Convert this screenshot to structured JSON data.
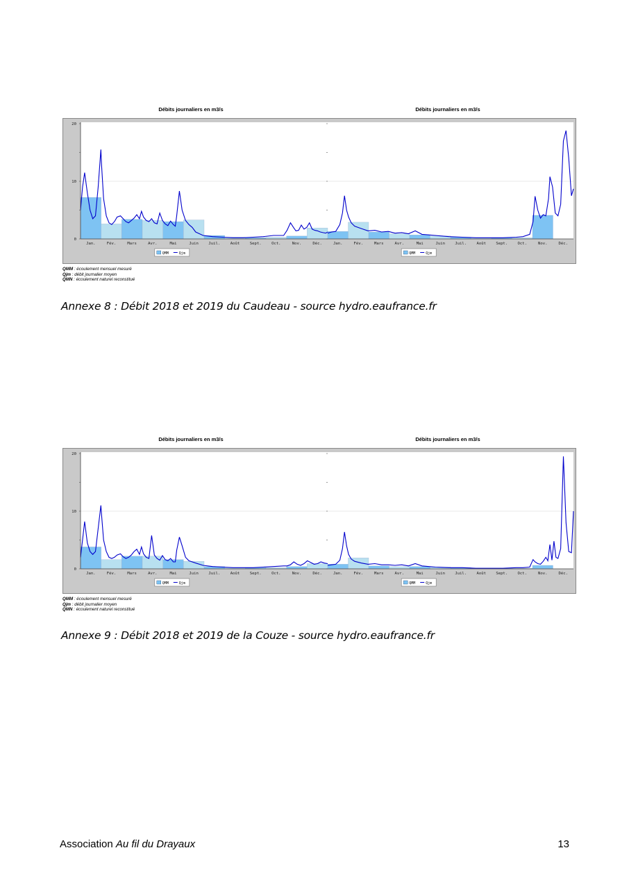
{
  "figures": [
    {
      "panels": [
        {
          "title": "Débits journaliers en m3/s"
        },
        {
          "title": "Débits journaliers en m3/s"
        }
      ],
      "notes": [
        {
          "abbr": "QMM",
          "text": " : écoulement mensuel mesuré"
        },
        {
          "abbr": "Qjm",
          "text": " : débit journalier moyen"
        },
        {
          "abbr": "QMN",
          "text": " : écoulement naturel reconstitué"
        }
      ],
      "caption": "Annexe 8 : Débit 2018 et 2019 du Caudeau - source hydro.eaufrance.fr"
    },
    {
      "panels": [
        {
          "title": "Débits journaliers en m3/s"
        },
        {
          "title": "Débits journaliers en m3/s"
        }
      ],
      "notes": [
        {
          "abbr": "QMM",
          "text": " : écoulement mensuel mesuré"
        },
        {
          "abbr": "Qjm",
          "text": " : débit journalier moyen"
        },
        {
          "abbr": "QMN",
          "text": " : écoulement naturel reconstitué"
        }
      ],
      "caption": "Annexe 9 : Débit 2018 et 2019 de la Couze - source hydro.eaufrance.fr"
    }
  ],
  "footer": {
    "association": "Association ",
    "name": "Au fil du Drayaux",
    "page": "13"
  },
  "colors": {
    "qmm": "#7ec3f3",
    "qmm_light": "#b8e0f0",
    "qjm": "#0000cc",
    "frame": "#c9c9c9"
  },
  "chart_data": [
    {
      "type": "bar",
      "title": "Débits journaliers en m3/s",
      "ylim": [
        0,
        20
      ],
      "yticks": [
        "0",
        "10",
        "20"
      ],
      "categories": [
        "Jan.",
        "Fév.",
        "Mars",
        "Avr.",
        "Mai",
        "Juin",
        "Juil.",
        "Août",
        "Sept.",
        "Oct.",
        "Nov.",
        "Déc."
      ],
      "legend": [
        "QMM",
        "Qjm"
      ],
      "series": [
        {
          "name": "QMM",
          "values": [
            7.2,
            2.6,
            3.4,
            3.2,
            3.0,
            3.3,
            0.6,
            0.3,
            0.2,
            0.3,
            0.5,
            1.9
          ]
        },
        {
          "name": "Qjm",
          "type": "line",
          "x": [
            0,
            3,
            6,
            10,
            14,
            18,
            22,
            26,
            30,
            31,
            34,
            38,
            42,
            46,
            50,
            54,
            59,
            63,
            67,
            71,
            75,
            79,
            83,
            87,
            90,
            93,
            97,
            101,
            105,
            109,
            113,
            117,
            121,
            125,
            129,
            133,
            137,
            140,
            142,
            146,
            150,
            155,
            160,
            165,
            170,
            181,
            195,
            210,
            225,
            240,
            255,
            270,
            285,
            300,
            305,
            310,
            315,
            318,
            322,
            326,
            330,
            334,
            338,
            342,
            346,
            350,
            354,
            358,
            362,
            365
          ],
          "values": [
            5,
            9,
            11.5,
            8,
            5,
            3.5,
            4,
            9,
            15.5,
            13,
            7,
            4,
            2.8,
            2.5,
            3,
            3.8,
            4,
            3.5,
            3.0,
            2.8,
            3.2,
            3.6,
            4.2,
            3.5,
            4.8,
            3.8,
            3.2,
            3.0,
            3.5,
            2.8,
            2.6,
            4.5,
            3.2,
            2.6,
            2.3,
            3.1,
            2.5,
            2.2,
            4,
            8.3,
            5,
            3.2,
            2.5,
            2,
            1.2,
            0.6,
            0.4,
            0.3,
            0.2,
            0.2,
            0.3,
            0.4,
            0.6,
            0.6,
            1.5,
            2.8,
            1.9,
            1.4,
            1.5,
            2.4,
            1.7,
            2.0,
            2.8,
            1.7,
            1.5,
            1.4,
            1.2,
            1.1,
            1.0,
            1.2
          ]
        }
      ]
    },
    {
      "type": "bar",
      "title": "Débits journaliers en m3/s",
      "ylim": [
        0,
        20
      ],
      "yticks": [
        "",
        "",
        ""
      ],
      "categories": [
        "Jan.",
        "Fév.",
        "Mars",
        "Avr.",
        "Mai",
        "Juin",
        "Juil.",
        "Août",
        "Sept.",
        "Oct.",
        "Nov.",
        "Déc."
      ],
      "legend": [
        "QMM",
        "Qjm"
      ],
      "series": [
        {
          "name": "QMM",
          "values": [
            1.3,
            2.9,
            1.2,
            0.9,
            0.7,
            0.5,
            0.3,
            0.2,
            0.2,
            0.2,
            4.1,
            0
          ]
        },
        {
          "name": "Qjm",
          "type": "line",
          "x": [
            0,
            6,
            12,
            18,
            22,
            25,
            28,
            31,
            35,
            40,
            50,
            60,
            70,
            80,
            90,
            100,
            110,
            120,
            130,
            140,
            150,
            160,
            180,
            200,
            220,
            240,
            260,
            280,
            290,
            300,
            305,
            308,
            312,
            316,
            320,
            324,
            328,
            330,
            334,
            338,
            342,
            346,
            350,
            354,
            358,
            362,
            365
          ],
          "values": [
            1,
            1.2,
            1.3,
            2.5,
            4.5,
            7.5,
            5,
            3.8,
            2.8,
            2.2,
            1.8,
            1.4,
            1.5,
            1.2,
            1.3,
            1.0,
            1.1,
            0.9,
            1.4,
            0.8,
            0.7,
            0.6,
            0.4,
            0.3,
            0.2,
            0.2,
            0.2,
            0.3,
            0.4,
            0.8,
            3,
            7.4,
            5,
            3.6,
            4.2,
            4,
            7,
            10.8,
            9,
            4.5,
            4,
            6,
            17,
            18.8,
            14,
            7.5,
            8.7
          ]
        }
      ]
    },
    {
      "type": "bar",
      "title": "Débits journaliers en m3/s",
      "ylim": [
        0,
        20
      ],
      "yticks": [
        "0",
        "10",
        "20"
      ],
      "categories": [
        "Jan.",
        "Fév.",
        "Mars",
        "Avr.",
        "Mai",
        "Juin",
        "Juil.",
        "Août",
        "Sept.",
        "Oct.",
        "Nov.",
        "Déc."
      ],
      "legend": [
        "QMM",
        "Qjm"
      ],
      "series": [
        {
          "name": "QMM",
          "values": [
            3.8,
            1.6,
            2.2,
            2.2,
            1.6,
            1.3,
            0.4,
            0.2,
            0.2,
            0.2,
            0.4,
            0.9
          ]
        },
        {
          "name": "Qjm",
          "type": "line",
          "x": [
            0,
            3,
            6,
            10,
            14,
            18,
            22,
            26,
            30,
            31,
            34,
            38,
            42,
            46,
            50,
            54,
            59,
            63,
            67,
            71,
            75,
            79,
            83,
            87,
            90,
            93,
            97,
            101,
            105,
            109,
            113,
            117,
            121,
            125,
            129,
            133,
            137,
            140,
            142,
            146,
            150,
            155,
            160,
            170,
            181,
            195,
            210,
            225,
            240,
            255,
            270,
            285,
            300,
            305,
            310,
            315,
            320,
            325,
            330,
            335,
            340,
            345,
            350,
            355,
            360,
            365
          ],
          "values": [
            2,
            5,
            8.2,
            4.5,
            3,
            2.5,
            3,
            7,
            11,
            9.5,
            5,
            3,
            2,
            1.8,
            2.0,
            2.4,
            2.6,
            2.1,
            1.8,
            2.0,
            2.4,
            3.0,
            3.4,
            2.5,
            3.8,
            2.6,
            2.0,
            1.8,
            5.8,
            2.4,
            1.8,
            1.5,
            2.3,
            1.6,
            1.4,
            1.8,
            1.2,
            1.2,
            3.2,
            5.5,
            4.0,
            2.0,
            1.4,
            1.0,
            0.6,
            0.4,
            0.3,
            0.2,
            0.2,
            0.2,
            0.3,
            0.4,
            0.5,
            0.5,
            0.7,
            1.2,
            0.8,
            0.6,
            0.9,
            1.4,
            1.1,
            0.8,
            0.9,
            1.2,
            1.0,
            0.9
          ]
        }
      ]
    },
    {
      "type": "bar",
      "title": "Débits journaliers en m3/s",
      "ylim": [
        0,
        20
      ],
      "yticks": [
        "",
        "",
        ""
      ],
      "categories": [
        "Jan.",
        "Fév.",
        "Mars",
        "Avr.",
        "Mai",
        "Juin",
        "Juil.",
        "Août",
        "Sept.",
        "Oct.",
        "Nov.",
        "Déc."
      ],
      "legend": [
        "QMM",
        "Qjm"
      ],
      "series": [
        {
          "name": "QMM",
          "values": [
            0.8,
            1.9,
            0.5,
            0.4,
            0.4,
            0.3,
            0.2,
            0.1,
            0.1,
            0.1,
            0.6,
            0
          ]
        },
        {
          "name": "Qjm",
          "type": "line",
          "x": [
            0,
            6,
            12,
            18,
            22,
            25,
            28,
            31,
            35,
            40,
            50,
            60,
            70,
            80,
            90,
            100,
            110,
            120,
            130,
            140,
            150,
            160,
            180,
            200,
            220,
            240,
            260,
            280,
            290,
            300,
            305,
            308,
            312,
            316,
            320,
            324,
            327,
            330,
            333,
            336,
            339,
            342,
            346,
            350,
            354,
            358,
            362,
            365
          ],
          "values": [
            0.6,
            0.7,
            0.8,
            1.5,
            3.5,
            6.4,
            4,
            2.5,
            1.7,
            1.3,
            1.0,
            0.8,
            0.9,
            0.7,
            0.7,
            0.6,
            0.7,
            0.5,
            0.9,
            0.5,
            0.4,
            0.3,
            0.2,
            0.2,
            0.1,
            0.1,
            0.1,
            0.2,
            0.2,
            0.3,
            1.6,
            1.2,
            0.9,
            0.8,
            1.3,
            2.0,
            1.4,
            4.2,
            1.5,
            4.8,
            2.0,
            1.8,
            3.5,
            19.5,
            8,
            3,
            2.8,
            10
          ]
        }
      ]
    }
  ]
}
